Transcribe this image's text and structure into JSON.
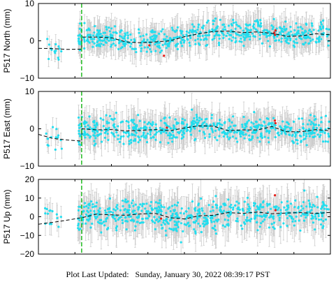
{
  "footer": {
    "label": "Plot Last Updated:",
    "timestamp": "Sunday, January 30, 2022 08:39:17 PST"
  },
  "chart_data": [
    {
      "type": "scatter",
      "ylabel": "P517 North (mm)",
      "ylim": [
        -10,
        10
      ],
      "yticks": [
        "10",
        "0",
        "−10"
      ],
      "ytick_values": [
        10,
        0,
        -10
      ],
      "xlim": [
        0,
        1
      ],
      "gap_marker_x": 0.148,
      "colors": {
        "points": "#22ddee",
        "outliers": "#e8201a",
        "errorbars": "#cccccc",
        "model": "#000000",
        "marker": "#22bb22"
      },
      "early_segment": {
        "x": [
          0.02,
          0.08
        ],
        "center": -2.5,
        "spread": 1.5,
        "err": 2.5
      },
      "model": {
        "x": [
          0.0,
          0.05,
          0.1,
          0.148,
          0.149,
          0.2,
          0.25,
          0.3,
          0.35,
          0.4,
          0.45,
          0.5,
          0.55,
          0.6,
          0.65,
          0.7,
          0.75,
          0.8,
          0.85,
          0.9,
          0.95,
          1.0
        ],
        "y": [
          -2.0,
          -2.1,
          -2.3,
          -2.2,
          1.0,
          1.0,
          0.8,
          -0.3,
          -0.5,
          -0.3,
          0.0,
          1.1,
          1.9,
          2.5,
          2.6,
          2.2,
          2.4,
          2.0,
          1.2,
          1.3,
          1.9,
          1.6
        ]
      },
      "scatter_spread": 1.6,
      "err": 3.2,
      "outliers": {
        "x": [
          0.38,
          0.43,
          0.808,
          0.81,
          0.812
        ],
        "y": [
          -1.2,
          -4.0,
          2.2,
          1.6,
          2.8
        ]
      }
    },
    {
      "type": "scatter",
      "ylabel": "P517 East (mm)",
      "ylim": [
        -10,
        10
      ],
      "yticks": [
        "10",
        "0",
        "−10"
      ],
      "ytick_values": [
        10,
        0,
        -10
      ],
      "xlim": [
        0,
        1
      ],
      "gap_marker_x": 0.148,
      "colors": {
        "points": "#22ddee",
        "outliers": "#e8201a",
        "errorbars": "#cccccc",
        "model": "#000000",
        "marker": "#22bb22"
      },
      "early_segment": {
        "x": [
          0.02,
          0.08
        ],
        "center": -2.0,
        "spread": 1.4,
        "err": 2.5
      },
      "model": {
        "x": [
          0.0,
          0.05,
          0.1,
          0.148,
          0.149,
          0.2,
          0.25,
          0.3,
          0.35,
          0.4,
          0.45,
          0.5,
          0.55,
          0.6,
          0.65,
          0.7,
          0.75,
          0.8,
          0.85,
          0.9,
          0.95,
          1.0
        ],
        "y": [
          -1.5,
          -2.6,
          -3.0,
          -3.3,
          0.0,
          -0.3,
          -0.2,
          -0.6,
          -0.4,
          -0.2,
          -0.5,
          0.2,
          0.8,
          0.7,
          -0.5,
          -0.3,
          -0.3,
          0.6,
          -0.8,
          -0.8,
          -0.2,
          -0.5
        ]
      },
      "scatter_spread": 1.7,
      "err": 3.5,
      "outliers": {
        "x": [
          0.81,
          0.812,
          0.44
        ],
        "y": [
          2.2,
          1.5,
          0.3
        ]
      }
    },
    {
      "type": "scatter",
      "ylabel": "P517 Up (mm)",
      "ylim": [
        -20,
        20
      ],
      "yticks": [
        "20",
        "10",
        "0",
        "−10",
        "−20"
      ],
      "ytick_values": [
        20,
        10,
        0,
        -10,
        -20
      ],
      "xlim": [
        0,
        1
      ],
      "gap_marker_x": 0.148,
      "colors": {
        "points": "#22ddee",
        "outliers": "#e8201a",
        "errorbars": "#cccccc",
        "model": "#000000",
        "marker": "#22bb22"
      },
      "early_segment": {
        "x": [
          0.02,
          0.08
        ],
        "center": -2.0,
        "spread": 3.0,
        "err": 6.0
      },
      "model": {
        "x": [
          0.0,
          0.05,
          0.1,
          0.148,
          0.149,
          0.2,
          0.25,
          0.3,
          0.35,
          0.4,
          0.45,
          0.5,
          0.55,
          0.6,
          0.65,
          0.7,
          0.75,
          0.8,
          0.85,
          0.9,
          0.95,
          1.0
        ],
        "y": [
          -4.0,
          -3.0,
          -1.8,
          -0.5,
          -0.5,
          1.4,
          1.0,
          0.8,
          1.5,
          1.8,
          -0.5,
          -1.2,
          0.5,
          0.8,
          2.2,
          1.8,
          2.5,
          1.6,
          2.0,
          2.2,
          1.8,
          2.3
        ]
      },
      "scatter_spread": 4.0,
      "err": 8.0,
      "outliers": {
        "x": [
          0.42,
          0.81,
          0.812
        ],
        "y": [
          -1.0,
          11.5,
          3.5
        ]
      }
    }
  ]
}
